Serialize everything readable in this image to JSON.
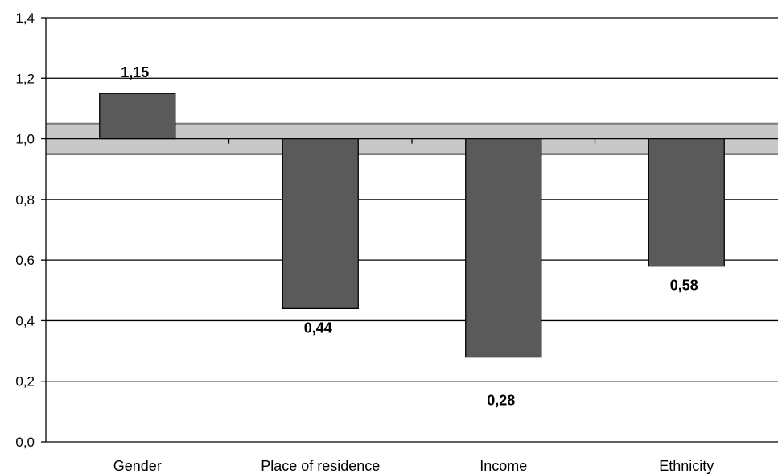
{
  "chart_data": {
    "type": "bar",
    "baseline": 1.0,
    "categories": [
      "Gender",
      "Place of residence",
      "Income",
      "Ethnicity"
    ],
    "values": [
      1.15,
      0.44,
      0.28,
      0.58
    ],
    "data_labels": [
      "1,15",
      "0,44",
      "0,28",
      "0,58"
    ],
    "ylim": [
      0.0,
      1.4
    ],
    "yticks": [
      0.0,
      0.2,
      0.4,
      0.6,
      0.8,
      1.0,
      1.2,
      1.4
    ],
    "ytick_labels": [
      "0,0",
      "0,2",
      "0,4",
      "0,6",
      "0,8",
      "1,0",
      "1,2",
      "1,4"
    ],
    "reference_band": [
      0.95,
      1.05
    ],
    "grid": true,
    "title": "",
    "xlabel": "",
    "ylabel": "",
    "colors": {
      "bar": "#5a5a5a",
      "band": "#c8c8c8",
      "band_edge": "#7a7a7a",
      "grid": "#000000"
    }
  }
}
